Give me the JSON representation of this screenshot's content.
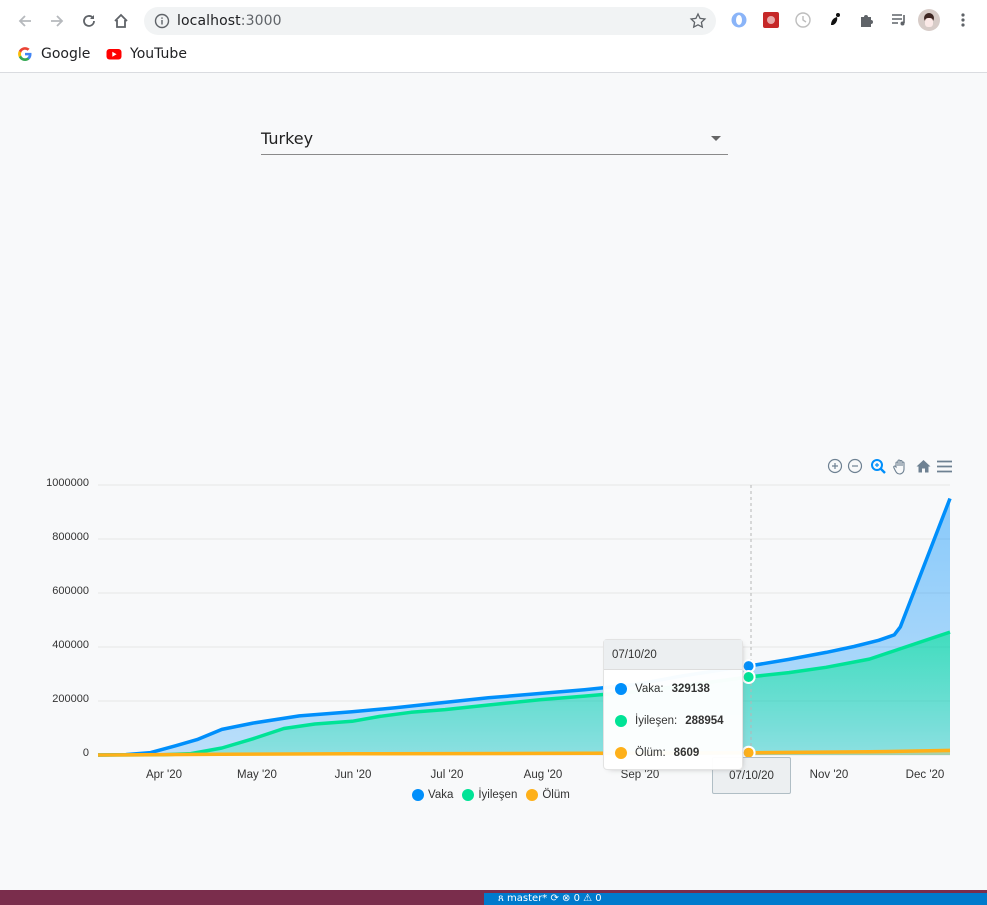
{
  "browser": {
    "url_host": "localhost",
    "url_port": ":3000",
    "bookmarks": [
      {
        "label": "Google",
        "icon": "google-icon"
      },
      {
        "label": "YouTube",
        "icon": "youtube-icon"
      }
    ]
  },
  "country_select": {
    "value": "Turkey"
  },
  "toolbar": {
    "icons": [
      "zoom-in-icon",
      "zoom-out-icon",
      "zoom-selection-icon",
      "pan-icon",
      "reset-home-icon",
      "menu-icon"
    ]
  },
  "colors": {
    "vaka": "#008ffb",
    "iyilesen": "#00e396",
    "olum": "#feb019"
  },
  "chart_data": {
    "type": "area",
    "y_ticks": [
      "1000000",
      "800000",
      "600000",
      "400000",
      "200000",
      "0"
    ],
    "x_ticks": [
      "Apr '20",
      "May '20",
      "Jun '20",
      "Jul '20",
      "Aug '20",
      "Sep '20",
      "Nov '20",
      "Dec '20"
    ],
    "ylim": [
      0,
      1000000
    ],
    "x_range": [
      "2020-03-11",
      "2020-12-11"
    ],
    "series": [
      {
        "name": "Vaka",
        "x": [
          "2020-03-11",
          "2020-03-20",
          "2020-03-28",
          "2020-04-05",
          "2020-04-12",
          "2020-04-20",
          "2020-04-30",
          "2020-05-15",
          "2020-06-01",
          "2020-06-15",
          "2020-07-01",
          "2020-07-15",
          "2020-08-01",
          "2020-08-15",
          "2020-09-01",
          "2020-09-15",
          "2020-10-01",
          "2020-10-07",
          "2020-10-20",
          "2020-11-01",
          "2020-11-10",
          "2020-11-18",
          "2020-11-23",
          "2020-11-25",
          "2020-12-11"
        ],
        "values": [
          0,
          1500,
          9000,
          34000,
          57000,
          95000,
          118000,
          145000,
          160000,
          175000,
          195000,
          212000,
          228000,
          242000,
          262000,
          292000,
          320000,
          329138,
          354000,
          380000,
          402000,
          425000,
          445000,
          475000,
          950000
        ]
      },
      {
        "name": "İyileşen",
        "x": [
          "2020-03-11",
          "2020-04-01",
          "2020-04-10",
          "2020-04-20",
          "2020-04-30",
          "2020-05-10",
          "2020-05-20",
          "2020-06-01",
          "2020-06-10",
          "2020-06-20",
          "2020-07-01",
          "2020-07-15",
          "2020-08-01",
          "2020-08-15",
          "2020-09-01",
          "2020-09-15",
          "2020-10-07",
          "2020-10-20",
          "2020-11-01",
          "2020-11-15",
          "2020-12-11"
        ],
        "values": [
          0,
          1000,
          5000,
          26000,
          60000,
          98000,
          115000,
          125000,
          143000,
          158000,
          168000,
          185000,
          205000,
          218000,
          235000,
          255000,
          288954,
          305000,
          325000,
          355000,
          455000
        ]
      },
      {
        "name": "Ölüm",
        "x": [
          "2020-03-11",
          "2020-04-20",
          "2020-06-01",
          "2020-08-01",
          "2020-10-07",
          "2020-11-15",
          "2020-12-11"
        ],
        "values": [
          0,
          2500,
          4600,
          5800,
          8609,
          12000,
          17000
        ]
      }
    ],
    "crosshair": {
      "x_label": "07/10/20"
    },
    "tooltip": {
      "title": "07/10/20",
      "rows": [
        {
          "label": "Vaka:",
          "value": "329138"
        },
        {
          "label": "İyileşen:",
          "value": "288954"
        },
        {
          "label": "Ölüm:",
          "value": "8609"
        }
      ]
    },
    "legend": [
      "Vaka",
      "İyileşen",
      "Ölüm"
    ],
    "legend_position": "bottom",
    "grid": true
  },
  "statusbar": {
    "text": "ጸ master* ⟳ ⊗ 0 ⚠ 0"
  }
}
